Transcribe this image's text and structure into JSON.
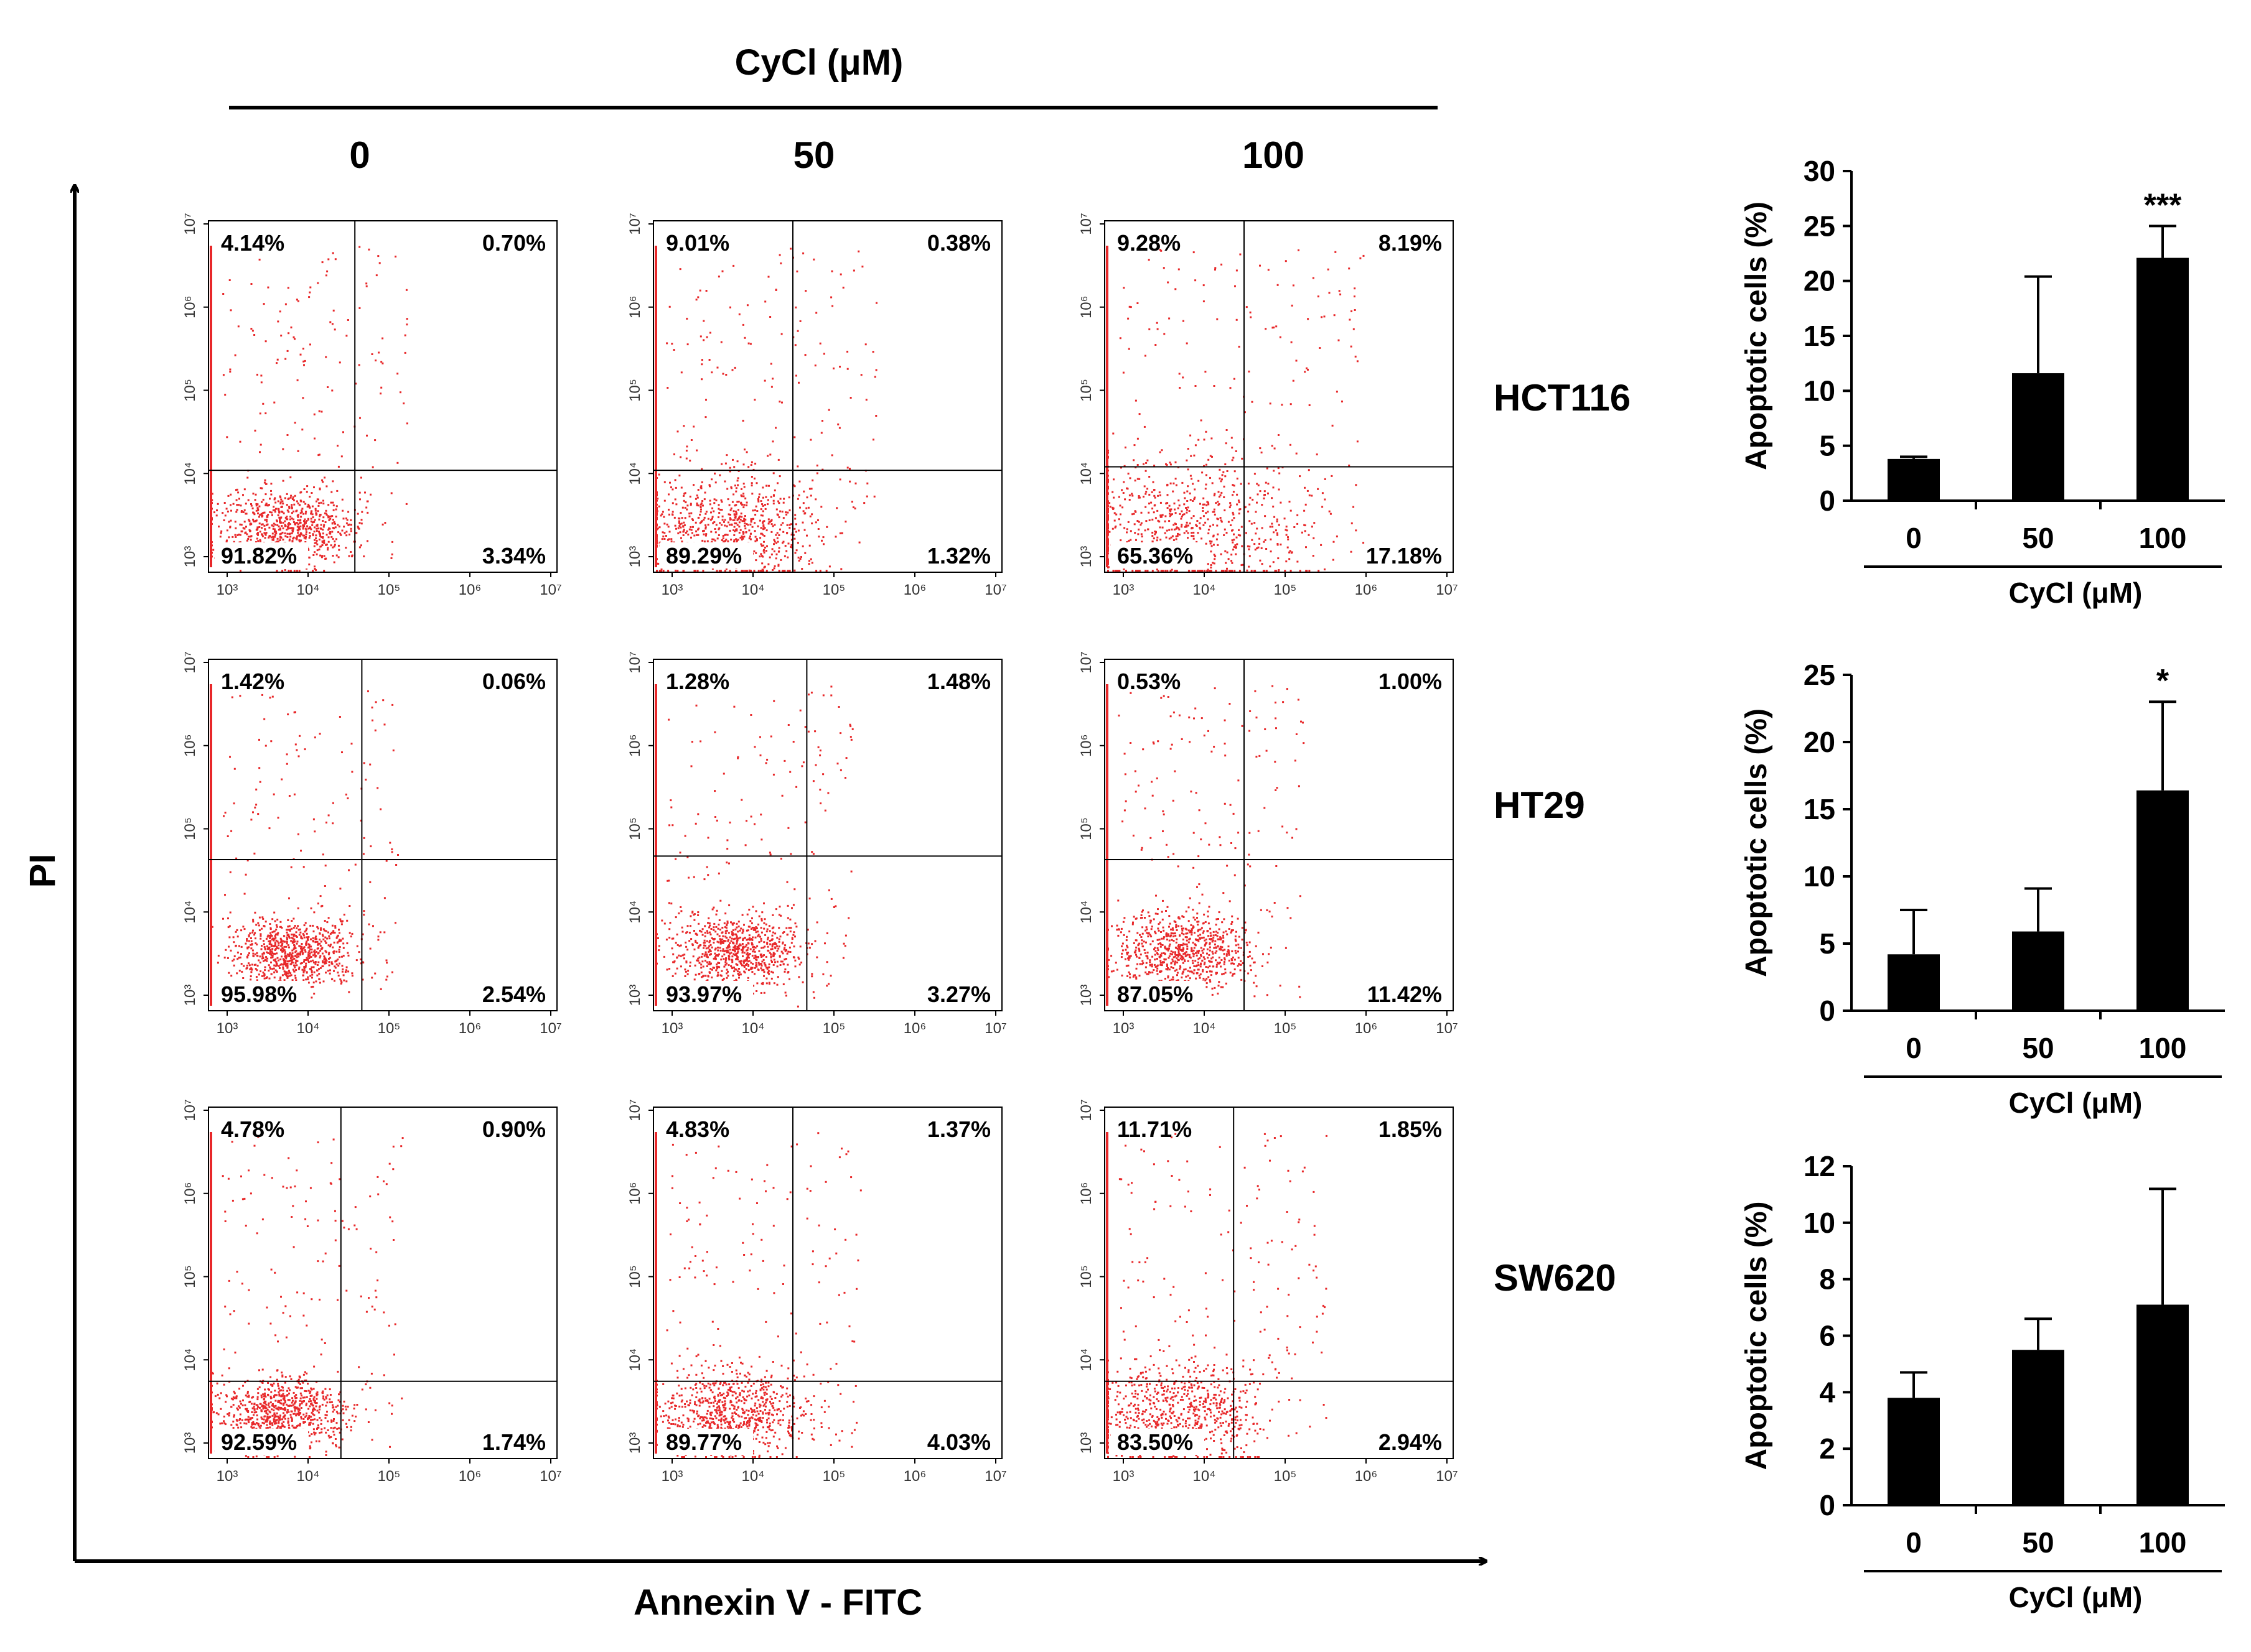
{
  "header": {
    "treatment_label": "CyCl (μM)",
    "doses": [
      "0",
      "50",
      "100"
    ]
  },
  "axes": {
    "y_label": "PI",
    "x_label": "Annexin V - FITC"
  },
  "flow_plots": {
    "tick_labels": [
      "10³",
      "10⁴",
      "10⁵",
      "10⁶",
      "10⁷"
    ],
    "rows": [
      {
        "cell_line": "HCT116",
        "panels": [
          {
            "dose": "0",
            "ul": "4.14%",
            "ur": "0.70%",
            "ll": "91.82%",
            "lr": "3.34%"
          },
          {
            "dose": "50",
            "ul": "9.01%",
            "ur": "0.38%",
            "ll": "89.29%",
            "lr": "1.32%"
          },
          {
            "dose": "100",
            "ul": "9.28%",
            "ur": "8.19%",
            "ll": "65.36%",
            "lr": "17.18%"
          }
        ]
      },
      {
        "cell_line": "HT29",
        "panels": [
          {
            "dose": "0",
            "ul": "1.42%",
            "ur": "0.06%",
            "ll": "95.98%",
            "lr": "2.54%"
          },
          {
            "dose": "50",
            "ul": "1.28%",
            "ur": "1.48%",
            "ll": "93.97%",
            "lr": "3.27%"
          },
          {
            "dose": "100",
            "ul": "0.53%",
            "ur": "1.00%",
            "ll": "87.05%",
            "lr": "11.42%"
          }
        ]
      },
      {
        "cell_line": "SW620",
        "panels": [
          {
            "dose": "0",
            "ul": "4.78%",
            "ur": "0.90%",
            "ll": "92.59%",
            "lr": "1.74%"
          },
          {
            "dose": "50",
            "ul": "4.83%",
            "ur": "1.37%",
            "ll": "89.77%",
            "lr": "4.03%"
          },
          {
            "dose": "100",
            "ul": "11.71%",
            "ur": "1.85%",
            "ll": "83.50%",
            "lr": "2.94%"
          }
        ]
      }
    ]
  },
  "colors": {
    "dots": "#e8282a",
    "bars": "#000000",
    "axes": "#000000"
  },
  "chart_data": [
    {
      "type": "bar",
      "title": "HCT116",
      "categories": [
        "0",
        "50",
        "100"
      ],
      "values": [
        3.8,
        11.6,
        22.1
      ],
      "errors": [
        0.2,
        8.8,
        2.9
      ],
      "significance": [
        "",
        "",
        "***"
      ],
      "ylabel": "Apoptotic cells (%)",
      "xlabel": "CyCl (μM)",
      "ylim": [
        0,
        30
      ],
      "yticks": [
        0,
        5,
        10,
        15,
        20,
        25,
        30
      ]
    },
    {
      "type": "bar",
      "title": "HT29",
      "categories": [
        "0",
        "50",
        "100"
      ],
      "values": [
        4.2,
        5.9,
        16.4
      ],
      "errors": [
        3.3,
        3.2,
        6.6
      ],
      "significance": [
        "",
        "",
        "*"
      ],
      "ylabel": "Apoptotic cells (%)",
      "xlabel": "CyCl (μM)",
      "ylim": [
        0,
        25
      ],
      "yticks": [
        0,
        5,
        10,
        15,
        20,
        25
      ]
    },
    {
      "type": "bar",
      "title": "SW620",
      "categories": [
        "0",
        "50",
        "100"
      ],
      "values": [
        3.8,
        5.5,
        7.1
      ],
      "errors": [
        0.9,
        1.1,
        4.1
      ],
      "significance": [
        "",
        "",
        ""
      ],
      "ylabel": "Apoptotic cells (%)",
      "xlabel": "CyCl (μM)",
      "ylim": [
        0,
        12
      ],
      "yticks": [
        0,
        2,
        4,
        6,
        8,
        10,
        12
      ]
    }
  ]
}
